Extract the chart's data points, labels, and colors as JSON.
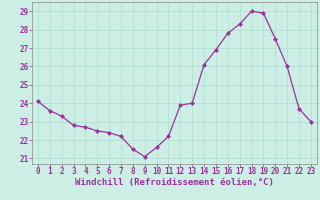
{
  "x": [
    0,
    1,
    2,
    3,
    4,
    5,
    6,
    7,
    8,
    9,
    10,
    11,
    12,
    13,
    14,
    15,
    16,
    17,
    18,
    19,
    20,
    21,
    22,
    23
  ],
  "y": [
    24.1,
    23.6,
    23.3,
    22.8,
    22.7,
    22.5,
    22.4,
    22.2,
    21.5,
    21.1,
    21.6,
    22.2,
    23.9,
    24.0,
    26.1,
    26.9,
    27.8,
    28.3,
    29.0,
    28.9,
    27.5,
    26.0,
    23.7,
    23.0
  ],
  "line_color_hex": "#993399",
  "marker": "D",
  "marker_size": 2.0,
  "line_width": 0.9,
  "xlim": [
    -0.5,
    23.5
  ],
  "ylim": [
    20.7,
    29.5
  ],
  "yticks": [
    21,
    22,
    23,
    24,
    25,
    26,
    27,
    28,
    29
  ],
  "xticks": [
    0,
    1,
    2,
    3,
    4,
    5,
    6,
    7,
    8,
    9,
    10,
    11,
    12,
    13,
    14,
    15,
    16,
    17,
    18,
    19,
    20,
    21,
    22,
    23
  ],
  "xlabel": "Windchill (Refroidissement éolien,°C)",
  "xlabel_fontsize": 6.5,
  "tick_fontsize": 5.5,
  "grid_color": "#b0ddd0",
  "bg_color": "#cceee4",
  "spine_color": "#888888"
}
